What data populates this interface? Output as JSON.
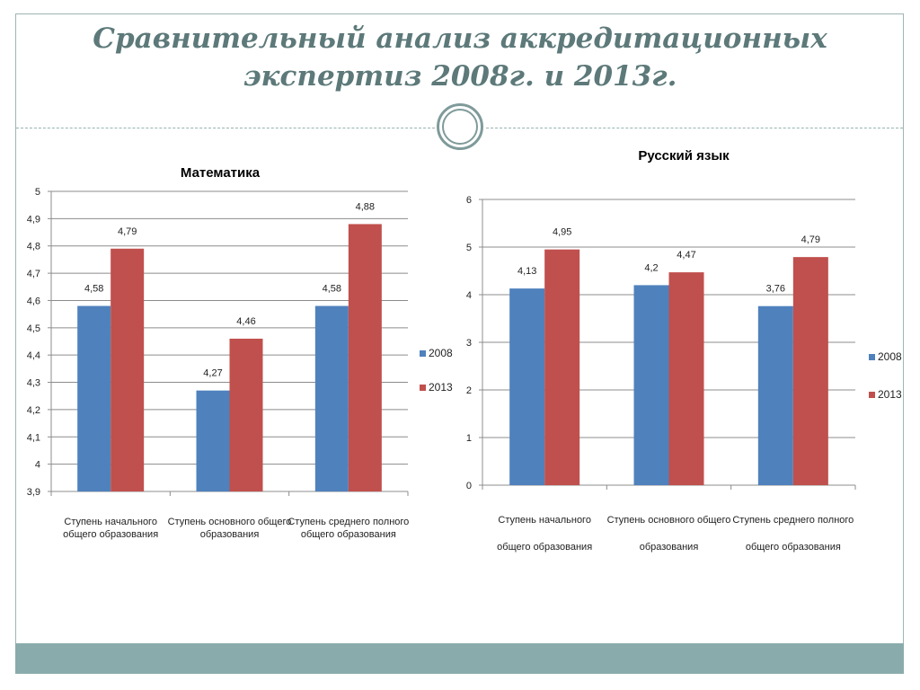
{
  "slide": {
    "title_line1": "Сравнительный анализ аккредитационных",
    "title_line2": "экспертиз 2008г. и 2013г.",
    "colors": {
      "accent": "#8aabab",
      "title": "#5d7979"
    }
  },
  "chart_data": [
    {
      "type": "bar",
      "title": "Математика",
      "categories": [
        [
          "Ступень начального",
          "общего образования"
        ],
        [
          "Ступень основного общего",
          "образования"
        ],
        [
          "Ступень среднего полного",
          "общего образования"
        ]
      ],
      "series": [
        {
          "name": "2008",
          "color": "#4f81bd",
          "values": [
            4.58,
            4.27,
            4.58
          ],
          "labels": [
            "4,58",
            "4,27",
            "4,58"
          ]
        },
        {
          "name": "2013",
          "color": "#c0504d",
          "values": [
            4.79,
            4.46,
            4.88
          ],
          "labels": [
            "4,79",
            "4,46",
            "4,88"
          ]
        }
      ],
      "ylim": [
        3.9,
        5
      ],
      "yticks": [
        "3,9",
        "4",
        "4,1",
        "4,2",
        "4,3",
        "4,4",
        "4,5",
        "4,6",
        "4,7",
        "4,8",
        "4,9",
        "5"
      ],
      "ytick_values": [
        3.9,
        4.0,
        4.1,
        4.2,
        4.3,
        4.4,
        4.5,
        4.6,
        4.7,
        4.8,
        4.9,
        5.0
      ],
      "grid": true,
      "legend": "right"
    },
    {
      "type": "bar",
      "title": "Русский язык",
      "categories": [
        [
          "Ступень начального",
          "общего образования"
        ],
        [
          "Ступень основного общего",
          "образования"
        ],
        [
          "Ступень среднего полного",
          "общего образования"
        ]
      ],
      "series": [
        {
          "name": "2008",
          "color": "#4f81bd",
          "values": [
            4.13,
            4.2,
            3.76
          ],
          "labels": [
            "4,13",
            "4,2",
            "3,76"
          ]
        },
        {
          "name": "2013",
          "color": "#c0504d",
          "values": [
            4.95,
            4.47,
            4.79
          ],
          "labels": [
            "4,95",
            "4,47",
            "4,79"
          ]
        }
      ],
      "ylim": [
        0,
        6
      ],
      "yticks": [
        "0",
        "1",
        "2",
        "3",
        "4",
        "5",
        "6"
      ],
      "ytick_values": [
        0,
        1,
        2,
        3,
        4,
        5,
        6
      ],
      "grid": true,
      "legend": "right"
    }
  ]
}
